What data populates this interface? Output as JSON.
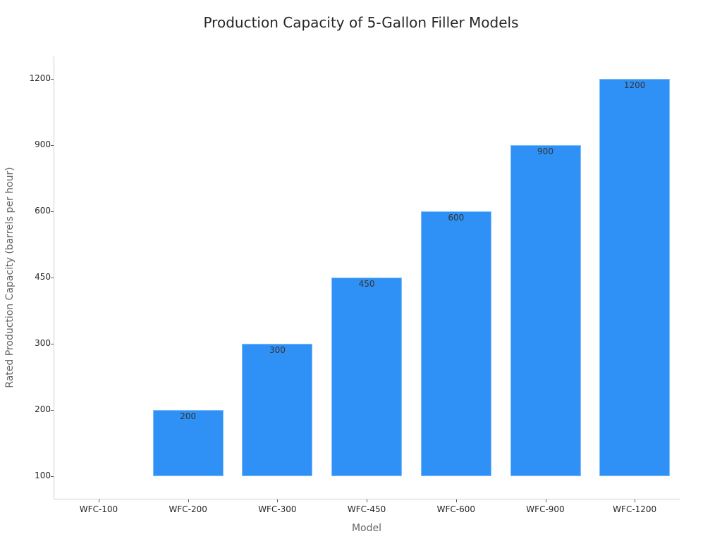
{
  "chart_data": {
    "type": "bar",
    "title": "Production Capacity of 5-Gallon Filler Models",
    "xlabel": "Model",
    "ylabel": "Rated Production Capacity (barrels per hour)",
    "categories": [
      "WFC-100",
      "WFC-200",
      "WFC-300",
      "WFC-450",
      "WFC-600",
      "WFC-900",
      "WFC-1200"
    ],
    "values": [
      100,
      200,
      300,
      450,
      600,
      900,
      1200
    ],
    "data_labels": [
      "",
      "200",
      "300",
      "450",
      "600",
      "900",
      "1200"
    ],
    "y_axis_type": "categorical",
    "y_ticks": [
      "100",
      "200",
      "300",
      "450",
      "600",
      "900",
      "1200"
    ],
    "bar_color": "#2f91f5",
    "grid": false,
    "legend": null
  }
}
